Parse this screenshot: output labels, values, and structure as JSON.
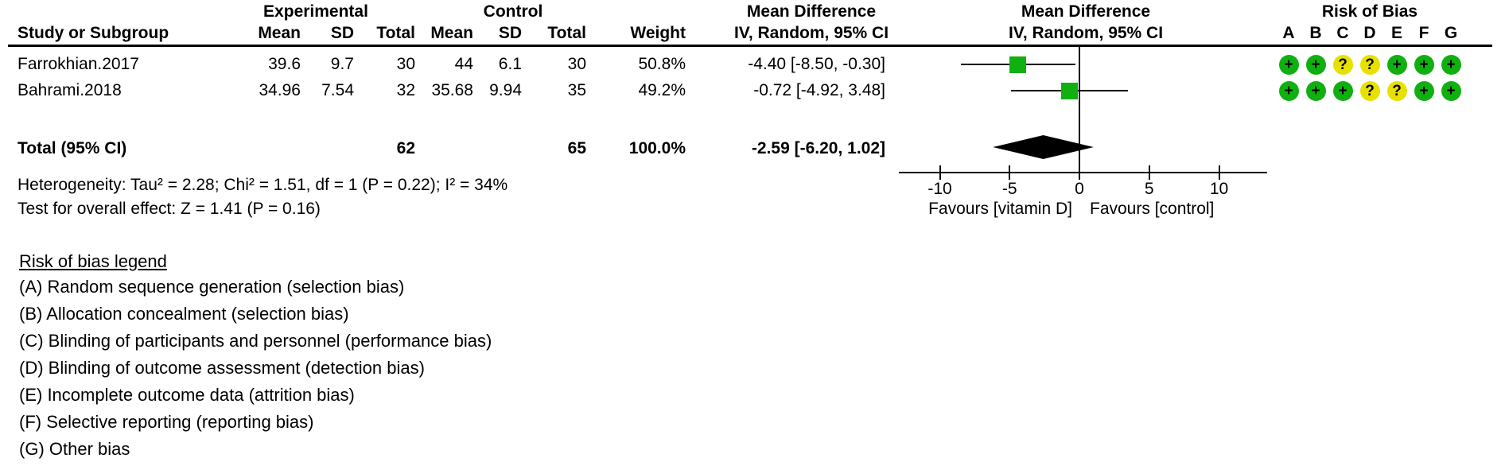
{
  "groups": {
    "experimental": "Experimental",
    "control": "Control",
    "md_col": "Mean Difference",
    "md_plot": "Mean Difference",
    "rob": "Risk of Bias"
  },
  "columns": {
    "study": "Study or Subgroup",
    "exp_mean": "Mean",
    "exp_sd": "SD",
    "exp_total": "Total",
    "ctrl_mean": "Mean",
    "ctrl_sd": "SD",
    "ctrl_total": "Total",
    "weight": "Weight",
    "ci": "IV, Random, 95% CI",
    "ci_plot": "IV, Random, 95% CI",
    "rob_letters": [
      "A",
      "B",
      "C",
      "D",
      "E",
      "F",
      "G"
    ]
  },
  "studies": [
    {
      "name": "Farrokhian.2017",
      "exp_mean": "39.6",
      "exp_sd": "9.7",
      "exp_total": "30",
      "ctrl_mean": "44",
      "ctrl_sd": "6.1",
      "ctrl_total": "30",
      "weight": "50.8%",
      "ci_text": "-4.40 [-8.50, -0.30]",
      "md": -4.4,
      "lo": -8.5,
      "hi": -0.3,
      "rob": [
        "+",
        "+",
        "?",
        "?",
        "+",
        "+",
        "+"
      ]
    },
    {
      "name": "Bahrami.2018",
      "exp_mean": "34.96",
      "exp_sd": "7.54",
      "exp_total": "32",
      "ctrl_mean": "35.68",
      "ctrl_sd": "9.94",
      "ctrl_total": "35",
      "weight": "49.2%",
      "ci_text": "-0.72 [-4.92, 3.48]",
      "md": -0.72,
      "lo": -4.92,
      "hi": 3.48,
      "rob": [
        "+",
        "+",
        "+",
        "?",
        "?",
        "+",
        "+"
      ]
    }
  ],
  "total": {
    "label": "Total (95% CI)",
    "exp_total": "62",
    "ctrl_total": "65",
    "weight": "100.0%",
    "ci_text": "-2.59 [-6.20, 1.02]",
    "md": -2.59,
    "lo": -6.2,
    "hi": 1.02
  },
  "stats": {
    "heterogeneity": "Heterogeneity: Tau² = 2.28; Chi² = 1.51, df = 1 (P = 0.22); I² = 34%",
    "overall": "Test for overall effect: Z = 1.41 (P = 0.16)"
  },
  "axis": {
    "ticks": [
      -10,
      -5,
      0,
      5,
      10
    ],
    "favours_left": "Favours [vitamin D]",
    "favours_right": "Favours [control]"
  },
  "rob_legend": {
    "title": "Risk of bias legend",
    "items": [
      "(A) Random sequence generation (selection bias)",
      "(B) Allocation concealment (selection bias)",
      "(C) Blinding of participants and personnel (performance bias)",
      "(D) Blinding of outcome assessment (detection bias)",
      "(E) Incomplete outcome data (attrition bias)",
      "(F) Selective reporting (reporting bias)",
      "(G) Other bias"
    ]
  },
  "colors": {
    "low_risk": "#0fb00f",
    "unclear_risk": "#e7e000",
    "marker": "#0fb00f",
    "diamond": "#000000",
    "line": "#000000"
  },
  "chart_data": {
    "type": "forest",
    "title": "Mean Difference, IV, Random, 95% CI",
    "xlim": [
      -13,
      13
    ],
    "x_ticks": [
      -10,
      -5,
      0,
      5,
      10
    ],
    "xlabel_left": "Favours [vitamin D]",
    "xlabel_right": "Favours [control]",
    "studies": [
      {
        "study": "Farrokhian.2017",
        "experimental": {
          "mean": 39.6,
          "sd": 9.7,
          "total": 30
        },
        "control": {
          "mean": 44,
          "sd": 6.1,
          "total": 30
        },
        "weight_pct": 50.8,
        "md": -4.4,
        "ci95": [
          -8.5,
          -0.3
        ],
        "risk_of_bias": {
          "A": "low",
          "B": "low",
          "C": "unclear",
          "D": "unclear",
          "E": "low",
          "F": "low",
          "G": "low"
        }
      },
      {
        "study": "Bahrami.2018",
        "experimental": {
          "mean": 34.96,
          "sd": 7.54,
          "total": 32
        },
        "control": {
          "mean": 35.68,
          "sd": 9.94,
          "total": 35
        },
        "weight_pct": 49.2,
        "md": -0.72,
        "ci95": [
          -4.92,
          3.48
        ],
        "risk_of_bias": {
          "A": "low",
          "B": "low",
          "C": "low",
          "D": "unclear",
          "E": "unclear",
          "F": "low",
          "G": "low"
        }
      }
    ],
    "total": {
      "label": "Total (95% CI)",
      "experimental_total": 62,
      "control_total": 65,
      "weight_pct": 100.0,
      "md": -2.59,
      "ci95": [
        -6.2,
        1.02
      ]
    },
    "heterogeneity": {
      "tau2": 2.28,
      "chi2": 1.51,
      "df": 1,
      "p": 0.22,
      "i2_pct": 34
    },
    "overall_effect": {
      "z": 1.41,
      "p": 0.16
    }
  }
}
